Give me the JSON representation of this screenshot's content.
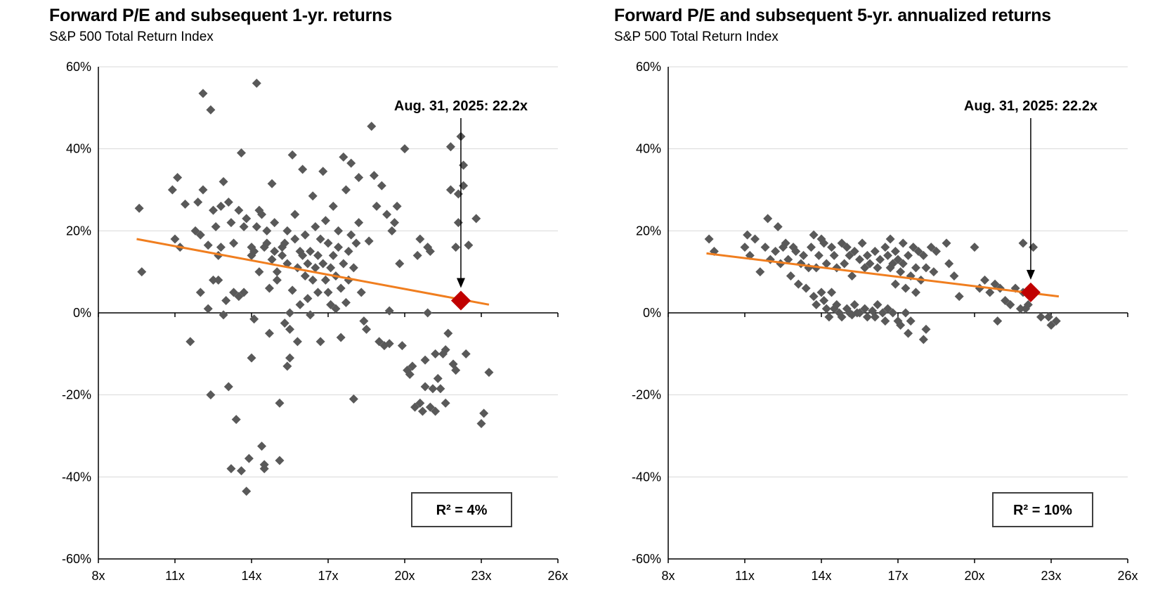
{
  "chart_data": [
    {
      "type": "scatter",
      "title": "Forward P/E and subsequent 1-yr. returns",
      "subtitle": "S&P 500 Total Return Index",
      "xlim": [
        8,
        26
      ],
      "ylim": [
        -60,
        60
      ],
      "xticks": [
        8,
        11,
        14,
        17,
        20,
        23,
        26
      ],
      "xtick_labels": [
        "8x",
        "11x",
        "14x",
        "17x",
        "20x",
        "23x",
        "26x"
      ],
      "yticks": [
        60,
        40,
        20,
        0,
        -20,
        -40,
        -60
      ],
      "ytick_labels": [
        "60%",
        "40%",
        "20%",
        "0%",
        "-20%",
        "-40%",
        "-60%"
      ],
      "grid": true,
      "trend_line": {
        "x": [
          9.5,
          23.3
        ],
        "y": [
          18.0,
          2.0
        ],
        "color": "#F07E1F"
      },
      "current": {
        "x": 22.2,
        "y": 3.0,
        "label": "Aug. 31, 2025: 22.2x",
        "color": "#C00000"
      },
      "r_squared_label": "R² = 4%",
      "point_color": "#595959",
      "points": [
        [
          9.6,
          25.5
        ],
        [
          9.7,
          10
        ],
        [
          10.9,
          30
        ],
        [
          11.0,
          18
        ],
        [
          11.1,
          33
        ],
        [
          11.2,
          16
        ],
        [
          11.4,
          26.5
        ],
        [
          11.6,
          -7
        ],
        [
          11.8,
          20
        ],
        [
          11.9,
          27
        ],
        [
          12.0,
          5
        ],
        [
          12.0,
          19
        ],
        [
          12.1,
          30
        ],
        [
          12.1,
          53.5
        ],
        [
          12.3,
          16.5
        ],
        [
          12.3,
          1
        ],
        [
          12.4,
          -20
        ],
        [
          12.4,
          49.5
        ],
        [
          12.5,
          25
        ],
        [
          12.5,
          8
        ],
        [
          12.6,
          21
        ],
        [
          12.7,
          14
        ],
        [
          12.7,
          8
        ],
        [
          12.8,
          26
        ],
        [
          12.8,
          16
        ],
        [
          12.9,
          32
        ],
        [
          12.9,
          -0.5
        ],
        [
          13.0,
          3
        ],
        [
          13.1,
          27
        ],
        [
          13.1,
          -18
        ],
        [
          13.2,
          22
        ],
        [
          13.2,
          -38
        ],
        [
          13.3,
          17
        ],
        [
          13.3,
          5
        ],
        [
          13.4,
          -26
        ],
        [
          13.5,
          4
        ],
        [
          13.5,
          25
        ],
        [
          13.6,
          39
        ],
        [
          13.6,
          -38.5
        ],
        [
          13.7,
          21
        ],
        [
          13.7,
          5
        ],
        [
          13.8,
          -43.5
        ],
        [
          13.8,
          23
        ],
        [
          13.9,
          -35.5
        ],
        [
          14.0,
          -11
        ],
        [
          14.0,
          14
        ],
        [
          14.0,
          16
        ],
        [
          14.1,
          15
        ],
        [
          14.1,
          -1.5
        ],
        [
          14.2,
          56
        ],
        [
          14.2,
          21
        ],
        [
          14.3,
          25
        ],
        [
          14.3,
          10
        ],
        [
          14.4,
          -32.5
        ],
        [
          14.4,
          24
        ],
        [
          14.5,
          16
        ],
        [
          14.5,
          -37
        ],
        [
          14.5,
          -38
        ],
        [
          14.6,
          20
        ],
        [
          14.6,
          17
        ],
        [
          14.7,
          6
        ],
        [
          14.7,
          -5
        ],
        [
          14.8,
          31.5
        ],
        [
          14.8,
          13
        ],
        [
          14.9,
          22
        ],
        [
          14.9,
          15
        ],
        [
          15.0,
          8
        ],
        [
          15.0,
          10
        ],
        [
          15.1,
          -36
        ],
        [
          15.1,
          -22
        ],
        [
          15.2,
          14
        ],
        [
          15.2,
          16
        ],
        [
          15.3,
          17
        ],
        [
          15.3,
          -2.5
        ],
        [
          15.4,
          12
        ],
        [
          15.4,
          -13
        ],
        [
          15.4,
          20
        ],
        [
          15.5,
          0
        ],
        [
          15.5,
          -4
        ],
        [
          15.5,
          -11
        ],
        [
          15.6,
          38.5
        ],
        [
          15.6,
          5.5
        ],
        [
          15.7,
          18
        ],
        [
          15.7,
          24
        ],
        [
          15.8,
          11
        ],
        [
          15.8,
          -7
        ],
        [
          15.9,
          15
        ],
        [
          15.9,
          2
        ],
        [
          16.0,
          35
        ],
        [
          16.0,
          14
        ],
        [
          16.1,
          19
        ],
        [
          16.1,
          9
        ],
        [
          16.2,
          12
        ],
        [
          16.2,
          3.5
        ],
        [
          16.3,
          15
        ],
        [
          16.3,
          -0.5
        ],
        [
          16.4,
          8
        ],
        [
          16.4,
          28.5
        ],
        [
          16.5,
          11
        ],
        [
          16.5,
          21
        ],
        [
          16.6,
          5
        ],
        [
          16.6,
          14
        ],
        [
          16.7,
          18
        ],
        [
          16.7,
          -7
        ],
        [
          16.8,
          34.5
        ],
        [
          16.8,
          12
        ],
        [
          16.9,
          22.5
        ],
        [
          16.9,
          8
        ],
        [
          17.0,
          17
        ],
        [
          17.0,
          5
        ],
        [
          17.1,
          11
        ],
        [
          17.1,
          2
        ],
        [
          17.2,
          26
        ],
        [
          17.2,
          14
        ],
        [
          17.3,
          9
        ],
        [
          17.3,
          1
        ],
        [
          17.4,
          20
        ],
        [
          17.4,
          16
        ],
        [
          17.5,
          -6
        ],
        [
          17.5,
          6
        ],
        [
          17.6,
          38
        ],
        [
          17.6,
          12
        ],
        [
          17.7,
          30
        ],
        [
          17.7,
          2.5
        ],
        [
          17.8,
          15
        ],
        [
          17.8,
          8
        ],
        [
          17.9,
          36.5
        ],
        [
          17.9,
          19
        ],
        [
          18.0,
          11
        ],
        [
          18.0,
          -21
        ],
        [
          18.1,
          17
        ],
        [
          18.2,
          33
        ],
        [
          18.2,
          22
        ],
        [
          18.3,
          5
        ],
        [
          18.4,
          -2
        ],
        [
          18.5,
          -4
        ],
        [
          18.6,
          17.5
        ],
        [
          18.7,
          45.5
        ],
        [
          18.8,
          33.5
        ],
        [
          18.9,
          26
        ],
        [
          19.0,
          -7
        ],
        [
          19.1,
          31
        ],
        [
          19.2,
          -8
        ],
        [
          19.3,
          24
        ],
        [
          19.4,
          -7.5
        ],
        [
          19.4,
          0.5
        ],
        [
          19.5,
          20
        ],
        [
          19.6,
          22
        ],
        [
          19.7,
          26
        ],
        [
          19.8,
          12
        ],
        [
          19.9,
          -8
        ],
        [
          20.0,
          40
        ],
        [
          20.1,
          -14
        ],
        [
          20.2,
          -15
        ],
        [
          20.3,
          -13
        ],
        [
          20.4,
          -23
        ],
        [
          20.5,
          14
        ],
        [
          20.6,
          -22
        ],
        [
          20.6,
          18
        ],
        [
          20.7,
          -24
        ],
        [
          20.8,
          -11.5
        ],
        [
          20.8,
          -18
        ],
        [
          20.9,
          16
        ],
        [
          20.9,
          0
        ],
        [
          21.0,
          -23
        ],
        [
          21.0,
          15
        ],
        [
          21.1,
          -18.5
        ],
        [
          21.2,
          -10
        ],
        [
          21.2,
          -24
        ],
        [
          21.3,
          -16
        ],
        [
          21.4,
          -18.5
        ],
        [
          21.5,
          -10
        ],
        [
          21.6,
          -9
        ],
        [
          21.6,
          -22
        ],
        [
          21.7,
          -5
        ],
        [
          21.8,
          30
        ],
        [
          21.8,
          40.5
        ],
        [
          21.9,
          -12.5
        ],
        [
          22.0,
          16
        ],
        [
          22.0,
          -14
        ],
        [
          22.1,
          29
        ],
        [
          22.1,
          22
        ],
        [
          22.2,
          43
        ],
        [
          22.3,
          36
        ],
        [
          22.3,
          31
        ],
        [
          22.4,
          -10
        ],
        [
          22.5,
          16.5
        ],
        [
          22.8,
          23
        ],
        [
          23.0,
          -27
        ],
        [
          23.1,
          -24.5
        ],
        [
          23.3,
          -14.5
        ]
      ]
    },
    {
      "type": "scatter",
      "title": "Forward P/E and subsequent 5-yr. annualized returns",
      "subtitle": "S&P 500 Total Return Index",
      "xlim": [
        8,
        26
      ],
      "ylim": [
        -60,
        60
      ],
      "xticks": [
        8,
        11,
        14,
        17,
        20,
        23,
        26
      ],
      "xtick_labels": [
        "8x",
        "11x",
        "14x",
        "17x",
        "20x",
        "23x",
        "26x"
      ],
      "yticks": [
        60,
        40,
        20,
        0,
        -20,
        -40,
        -60
      ],
      "ytick_labels": [
        "60%",
        "40%",
        "20%",
        "0%",
        "-20%",
        "-40%",
        "-60%"
      ],
      "grid": true,
      "trend_line": {
        "x": [
          9.5,
          23.3
        ],
        "y": [
          14.5,
          4.0
        ],
        "color": "#F07E1F"
      },
      "current": {
        "x": 22.2,
        "y": 5.0,
        "label": "Aug. 31, 2025: 22.2x",
        "color": "#C00000"
      },
      "r_squared_label": "R² = 10%",
      "point_color": "#595959",
      "points": [
        [
          9.6,
          18
        ],
        [
          9.8,
          15
        ],
        [
          11.0,
          16
        ],
        [
          11.1,
          19
        ],
        [
          11.2,
          14
        ],
        [
          11.4,
          18
        ],
        [
          11.6,
          10
        ],
        [
          11.8,
          16
        ],
        [
          11.9,
          23
        ],
        [
          12.0,
          13
        ],
        [
          12.2,
          15
        ],
        [
          12.3,
          21
        ],
        [
          12.4,
          12
        ],
        [
          12.5,
          16
        ],
        [
          12.6,
          17
        ],
        [
          12.7,
          13
        ],
        [
          12.8,
          9
        ],
        [
          12.9,
          16
        ],
        [
          13.0,
          15
        ],
        [
          13.1,
          7
        ],
        [
          13.2,
          12
        ],
        [
          13.3,
          14
        ],
        [
          13.4,
          6
        ],
        [
          13.5,
          11
        ],
        [
          13.6,
          16
        ],
        [
          13.7,
          19
        ],
        [
          13.7,
          4
        ],
        [
          13.8,
          11
        ],
        [
          13.8,
          2
        ],
        [
          13.9,
          14
        ],
        [
          14.0,
          18
        ],
        [
          14.0,
          5
        ],
        [
          14.1,
          17
        ],
        [
          14.1,
          3
        ],
        [
          14.2,
          12
        ],
        [
          14.2,
          1
        ],
        [
          14.3,
          -1
        ],
        [
          14.4,
          16
        ],
        [
          14.4,
          5
        ],
        [
          14.5,
          14
        ],
        [
          14.5,
          1
        ],
        [
          14.6,
          11
        ],
        [
          14.6,
          2
        ],
        [
          14.7,
          0
        ],
        [
          14.8,
          17
        ],
        [
          14.8,
          -1
        ],
        [
          14.9,
          12
        ],
        [
          15.0,
          16
        ],
        [
          15.0,
          1
        ],
        [
          15.1,
          14
        ],
        [
          15.1,
          0
        ],
        [
          15.2,
          9
        ],
        [
          15.2,
          -0.5
        ],
        [
          15.3,
          15
        ],
        [
          15.3,
          2
        ],
        [
          15.4,
          0
        ],
        [
          15.5,
          13
        ],
        [
          15.5,
          0
        ],
        [
          15.6,
          17
        ],
        [
          15.7,
          11
        ],
        [
          15.7,
          1
        ],
        [
          15.8,
          14
        ],
        [
          15.8,
          -1
        ],
        [
          15.9,
          12
        ],
        [
          16.0,
          0.5
        ],
        [
          16.1,
          15
        ],
        [
          16.1,
          -1
        ],
        [
          16.2,
          11
        ],
        [
          16.2,
          2
        ],
        [
          16.3,
          13
        ],
        [
          16.4,
          0
        ],
        [
          16.5,
          16
        ],
        [
          16.5,
          -2
        ],
        [
          16.6,
          14
        ],
        [
          16.6,
          1
        ],
        [
          16.7,
          18
        ],
        [
          16.7,
          11
        ],
        [
          16.8,
          12
        ],
        [
          16.8,
          0
        ],
        [
          16.9,
          15
        ],
        [
          16.9,
          7
        ],
        [
          17.0,
          13
        ],
        [
          17.0,
          -2
        ],
        [
          17.1,
          10
        ],
        [
          17.1,
          -3
        ],
        [
          17.2,
          17
        ],
        [
          17.2,
          12
        ],
        [
          17.3,
          6
        ],
        [
          17.3,
          0
        ],
        [
          17.4,
          14
        ],
        [
          17.4,
          -5
        ],
        [
          17.5,
          9
        ],
        [
          17.5,
          -2
        ],
        [
          17.6,
          16
        ],
        [
          17.7,
          11
        ],
        [
          17.7,
          5
        ],
        [
          17.8,
          15
        ],
        [
          17.9,
          8
        ],
        [
          18.0,
          14
        ],
        [
          18.0,
          -6.5
        ],
        [
          18.1,
          11
        ],
        [
          18.1,
          -4
        ],
        [
          18.3,
          16
        ],
        [
          18.4,
          10
        ],
        [
          18.5,
          15
        ],
        [
          18.9,
          17
        ],
        [
          19.0,
          12
        ],
        [
          19.2,
          9
        ],
        [
          19.4,
          4
        ],
        [
          20.0,
          16
        ],
        [
          20.2,
          6
        ],
        [
          20.4,
          8
        ],
        [
          20.6,
          5
        ],
        [
          20.8,
          7
        ],
        [
          20.9,
          -2
        ],
        [
          21.0,
          6
        ],
        [
          21.2,
          3
        ],
        [
          21.4,
          2
        ],
        [
          21.6,
          6
        ],
        [
          21.8,
          1
        ],
        [
          21.9,
          5
        ],
        [
          21.9,
          17
        ],
        [
          22.0,
          1
        ],
        [
          22.1,
          2
        ],
        [
          22.3,
          16
        ],
        [
          22.6,
          -1
        ],
        [
          22.9,
          -1
        ],
        [
          23.0,
          -3
        ],
        [
          23.2,
          -2
        ]
      ]
    }
  ]
}
